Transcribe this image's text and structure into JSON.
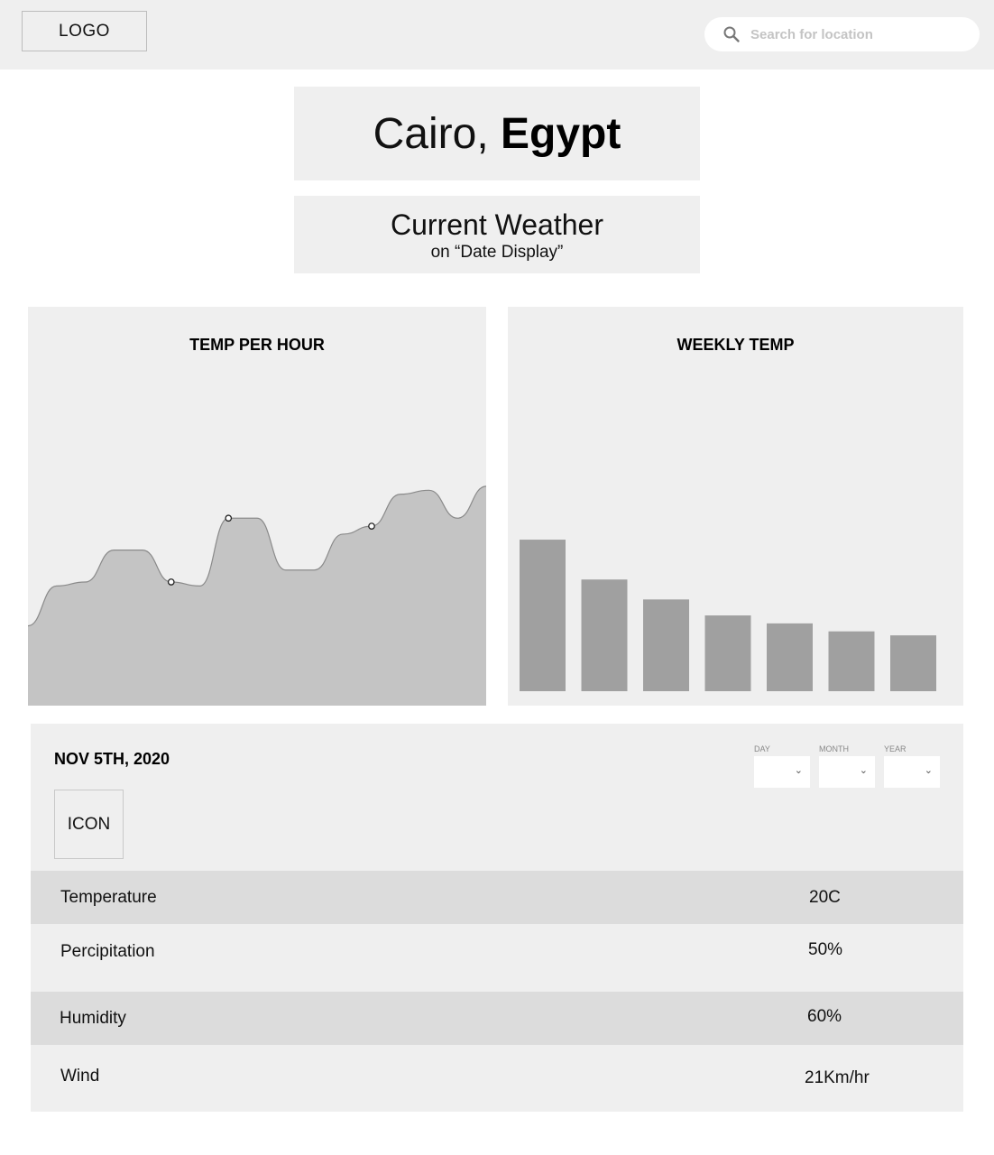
{
  "header": {
    "logo": "LOGO",
    "search_placeholder": "Search for location"
  },
  "location": {
    "city": "Cairo,",
    "country": "Egypt"
  },
  "current": {
    "title": "Current Weather",
    "subtitle": "on “Date Display”"
  },
  "charts": {
    "hourly_title": "TEMP PER HOUR",
    "weekly_title": "WEEKLY TEMP"
  },
  "details": {
    "date": "NOV 5TH, 2020",
    "icon_placeholder": "ICON",
    "selects": [
      {
        "label": "DAY"
      },
      {
        "label": "MONTH"
      },
      {
        "label": "YEAR"
      }
    ],
    "rows": [
      {
        "label": "Temperature",
        "value": "20C"
      },
      {
        "label": "Percipitation",
        "value": "50%"
      },
      {
        "label": "Humidity",
        "value": "60%"
      },
      {
        "label": "Wind",
        "value": "21Km/hr"
      }
    ]
  },
  "colors": {
    "panel": "#efefef",
    "row_dark": "#dcdcdc",
    "area_fill": "#c4c4c4",
    "bar_fill": "#a0a0a0"
  },
  "chart_data": [
    {
      "type": "area",
      "title": "TEMP PER HOUR",
      "x": [
        0,
        1,
        2,
        3,
        4,
        5,
        6,
        7,
        8,
        9,
        10,
        11,
        12,
        13,
        14,
        15,
        16
      ],
      "values": [
        0.2,
        0.3,
        0.31,
        0.39,
        0.39,
        0.31,
        0.3,
        0.47,
        0.47,
        0.34,
        0.34,
        0.43,
        0.45,
        0.53,
        0.54,
        0.47,
        0.55
      ],
      "highlighted_points": [
        5,
        7,
        12
      ],
      "ylim": [
        0,
        1
      ]
    },
    {
      "type": "bar",
      "title": "WEEKLY TEMP",
      "categories": [
        "1",
        "2",
        "3",
        "4",
        "5",
        "6",
        "7"
      ],
      "values": [
        0.38,
        0.28,
        0.23,
        0.19,
        0.17,
        0.15,
        0.14
      ],
      "ylim": [
        0,
        1
      ]
    }
  ]
}
